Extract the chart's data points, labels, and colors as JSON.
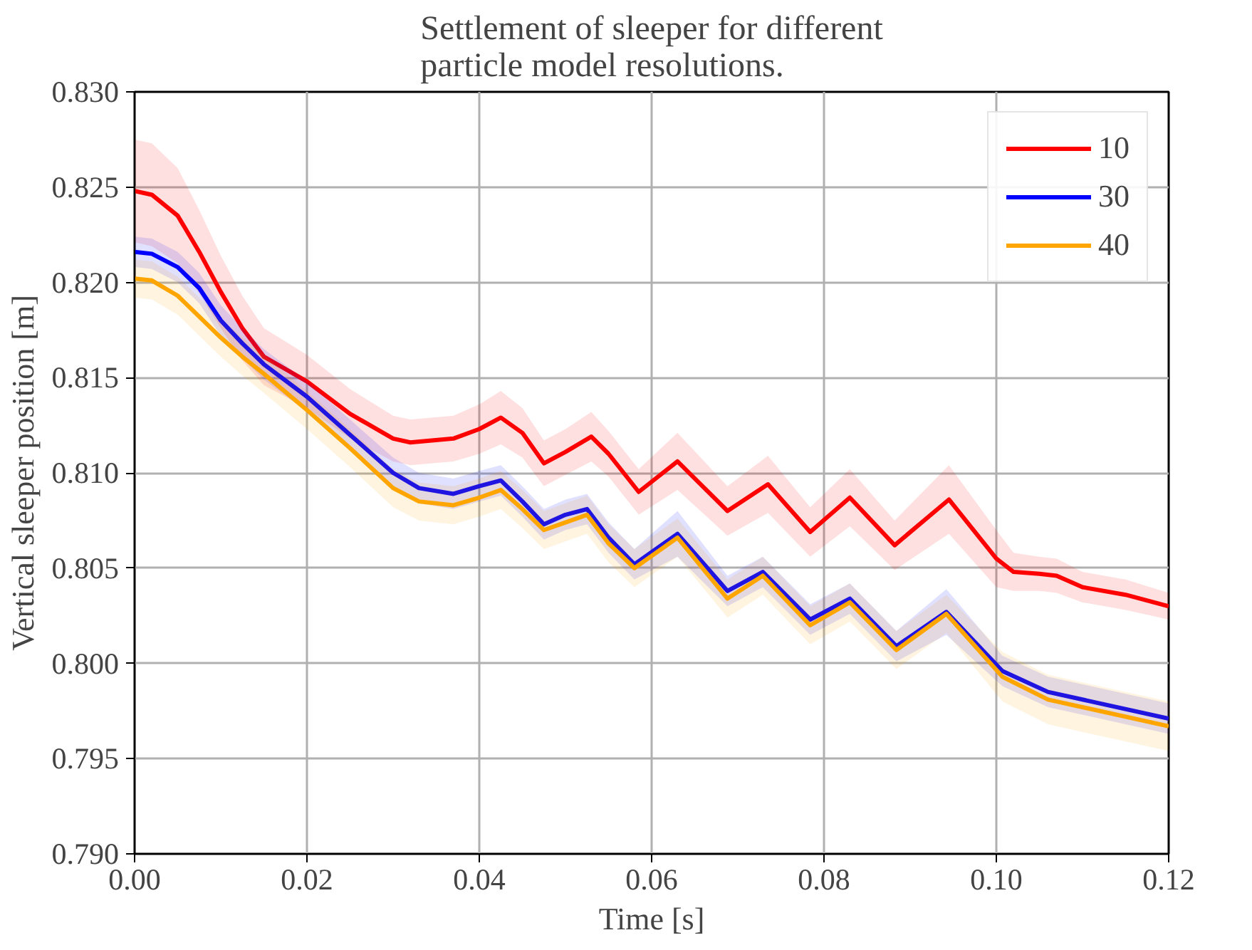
{
  "chart_data": {
    "type": "line",
    "title": "Settlement of sleeper for different\nparticle model resolutions.",
    "xlabel": "Time [s]",
    "ylabel": "Vertical sleeper position [m]",
    "xlim": [
      0,
      0.12
    ],
    "ylim": [
      0.79,
      0.83
    ],
    "xticks": [
      {
        "value": 0,
        "label": "0.00"
      },
      {
        "value": 0.02,
        "label": "0.02"
      },
      {
        "value": 0.04,
        "label": "0.04"
      },
      {
        "value": 0.06,
        "label": "0.06"
      },
      {
        "value": 0.08,
        "label": "0.08"
      },
      {
        "value": 0.1,
        "label": "0.10"
      },
      {
        "value": 0.12,
        "label": "0.12"
      }
    ],
    "yticks": [
      {
        "value": 0.79,
        "label": "0.790"
      },
      {
        "value": 0.795,
        "label": "0.795"
      },
      {
        "value": 0.8,
        "label": "0.800"
      },
      {
        "value": 0.805,
        "label": "0.805"
      },
      {
        "value": 0.81,
        "label": "0.810"
      },
      {
        "value": 0.815,
        "label": "0.815"
      },
      {
        "value": 0.82,
        "label": "0.820"
      },
      {
        "value": 0.825,
        "label": "0.825"
      },
      {
        "value": 0.83,
        "label": "0.830"
      }
    ],
    "grid": true,
    "legend": "top right",
    "line_style": "solid",
    "marker": "none",
    "series": [
      {
        "name": "10",
        "color": "#ff0000",
        "x": [
          0,
          0.002,
          0.005,
          0.0075,
          0.01,
          0.0125,
          0.015,
          0.02,
          0.025,
          0.03,
          0.032,
          0.037,
          0.04,
          0.0425,
          0.045,
          0.0475,
          0.05,
          0.053,
          0.055,
          0.0585,
          0.063,
          0.0688,
          0.0735,
          0.0784,
          0.083,
          0.0882,
          0.0945,
          0.1,
          0.102,
          0.105,
          0.107,
          0.11,
          0.115,
          0.12
        ],
        "values": [
          0.8248,
          0.8246,
          0.8235,
          0.8216,
          0.8195,
          0.8176,
          0.8161,
          0.8148,
          0.8131,
          0.8118,
          0.8116,
          0.8118,
          0.8123,
          0.8129,
          0.8121,
          0.8105,
          0.8111,
          0.8119,
          0.811,
          0.809,
          0.8106,
          0.808,
          0.8094,
          0.8069,
          0.8087,
          0.8062,
          0.8086,
          0.8055,
          0.8048,
          0.8047,
          0.8046,
          0.804,
          0.8036,
          0.803
        ],
        "upper": [
          0.8275,
          0.8273,
          0.826,
          0.8238,
          0.8214,
          0.8193,
          0.8176,
          0.8162,
          0.8144,
          0.813,
          0.8128,
          0.813,
          0.8136,
          0.8143,
          0.8134,
          0.8117,
          0.8123,
          0.8132,
          0.8122,
          0.8102,
          0.8121,
          0.8093,
          0.8109,
          0.8082,
          0.8102,
          0.8075,
          0.8104,
          0.807,
          0.8058,
          0.8056,
          0.8055,
          0.8048,
          0.8044,
          0.8037
        ],
        "lower": [
          0.8221,
          0.8219,
          0.821,
          0.8194,
          0.8176,
          0.8159,
          0.8146,
          0.8134,
          0.8118,
          0.8106,
          0.8104,
          0.8106,
          0.811,
          0.8115,
          0.8108,
          0.8093,
          0.8099,
          0.8106,
          0.8098,
          0.8078,
          0.8091,
          0.8067,
          0.8079,
          0.8056,
          0.8072,
          0.8049,
          0.8068,
          0.804,
          0.8038,
          0.8038,
          0.8037,
          0.8032,
          0.8028,
          0.8023
        ]
      },
      {
        "name": "30",
        "color": "#0000ff",
        "x": [
          0,
          0.002,
          0.005,
          0.0075,
          0.01,
          0.0125,
          0.015,
          0.02,
          0.025,
          0.03,
          0.033,
          0.037,
          0.04,
          0.0425,
          0.045,
          0.0475,
          0.05,
          0.0525,
          0.055,
          0.058,
          0.063,
          0.0688,
          0.0729,
          0.0784,
          0.083,
          0.0884,
          0.0942,
          0.1007,
          0.106,
          0.12
        ],
        "values": [
          0.8216,
          0.8215,
          0.8208,
          0.8197,
          0.818,
          0.8168,
          0.8157,
          0.814,
          0.812,
          0.81,
          0.8092,
          0.8089,
          0.8093,
          0.8096,
          0.8085,
          0.8073,
          0.8078,
          0.8081,
          0.8066,
          0.8052,
          0.8068,
          0.8038,
          0.8048,
          0.8023,
          0.8034,
          0.8009,
          0.8027,
          0.7996,
          0.7985,
          0.7971
        ],
        "upper": [
          0.8224,
          0.8223,
          0.8216,
          0.8205,
          0.8188,
          0.8176,
          0.8165,
          0.8148,
          0.8128,
          0.8108,
          0.81,
          0.8097,
          0.8101,
          0.8104,
          0.8093,
          0.8081,
          0.8086,
          0.8089,
          0.8074,
          0.806,
          0.808,
          0.8046,
          0.8056,
          0.8031,
          0.8042,
          0.8017,
          0.8039,
          0.8004,
          0.7993,
          0.7979
        ],
        "lower": [
          0.8208,
          0.8207,
          0.82,
          0.8189,
          0.8172,
          0.816,
          0.8149,
          0.8132,
          0.8112,
          0.8092,
          0.8084,
          0.8081,
          0.8085,
          0.8088,
          0.8077,
          0.8065,
          0.807,
          0.8073,
          0.8058,
          0.8044,
          0.8056,
          0.803,
          0.804,
          0.8015,
          0.8026,
          0.8001,
          0.8015,
          0.7988,
          0.7977,
          0.7963
        ]
      },
      {
        "name": "40",
        "color": "#ffa500",
        "x": [
          0,
          0.002,
          0.005,
          0.0075,
          0.01,
          0.0125,
          0.015,
          0.02,
          0.025,
          0.03,
          0.033,
          0.037,
          0.04,
          0.0425,
          0.045,
          0.0475,
          0.05,
          0.0525,
          0.055,
          0.058,
          0.063,
          0.0688,
          0.0729,
          0.0784,
          0.083,
          0.0884,
          0.0942,
          0.1007,
          0.106,
          0.12
        ],
        "values": [
          0.8202,
          0.8201,
          0.8193,
          0.8182,
          0.8171,
          0.8161,
          0.8152,
          0.8133,
          0.8113,
          0.8092,
          0.8085,
          0.8083,
          0.8087,
          0.8091,
          0.8081,
          0.807,
          0.8074,
          0.8078,
          0.8063,
          0.805,
          0.8066,
          0.8034,
          0.8046,
          0.802,
          0.8032,
          0.8007,
          0.8026,
          0.7993,
          0.7981,
          0.7967
        ],
        "upper": [
          0.8212,
          0.8211,
          0.8203,
          0.8192,
          0.8181,
          0.8171,
          0.8162,
          0.8143,
          0.8123,
          0.8102,
          0.8095,
          0.8093,
          0.8097,
          0.8101,
          0.8091,
          0.808,
          0.8084,
          0.8088,
          0.8073,
          0.806,
          0.8076,
          0.8044,
          0.8056,
          0.803,
          0.8042,
          0.8017,
          0.8036,
          0.8006,
          0.7994,
          0.798
        ],
        "lower": [
          0.8192,
          0.8191,
          0.8183,
          0.8172,
          0.8161,
          0.8151,
          0.8142,
          0.8123,
          0.8103,
          0.8082,
          0.8075,
          0.8073,
          0.8077,
          0.8081,
          0.8071,
          0.806,
          0.8064,
          0.8068,
          0.8053,
          0.804,
          0.8056,
          0.8024,
          0.8036,
          0.801,
          0.8022,
          0.7997,
          0.8016,
          0.798,
          0.7968,
          0.7954
        ]
      }
    ]
  }
}
